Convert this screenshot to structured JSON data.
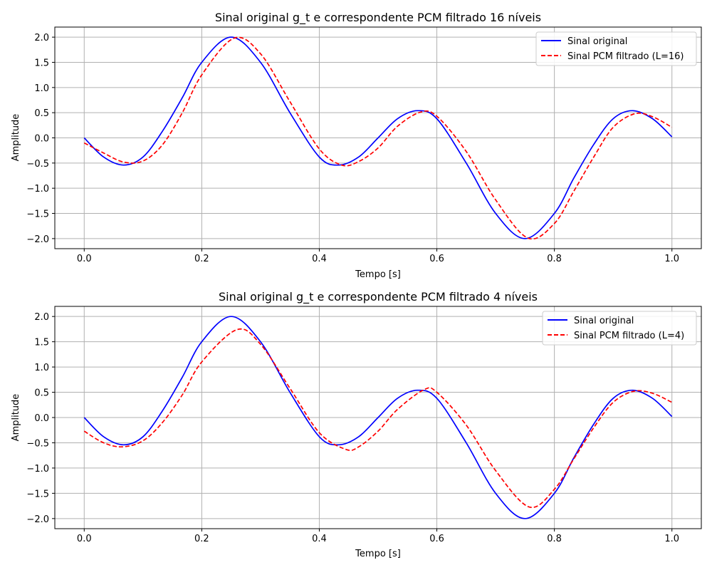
{
  "chart_data": [
    {
      "type": "line",
      "title": "Sinal original g_t e correspondente PCM filtrado 16 níveis",
      "xlabel": "Tempo [s]",
      "ylabel": "Amplitude",
      "xlim": [
        -0.05,
        1.05
      ],
      "ylim": [
        -2.2,
        2.2
      ],
      "xticks": [
        0.0,
        0.2,
        0.4,
        0.6,
        0.8,
        1.0
      ],
      "xtick_labels": [
        "0.0",
        "0.2",
        "0.4",
        "0.6",
        "0.8",
        "1.0"
      ],
      "yticks": [
        2.0,
        1.5,
        1.0,
        0.5,
        0.0,
        -0.5,
        -1.0,
        -1.5,
        -2.0
      ],
      "ytick_labels": [
        "2.0",
        "1.5",
        "1.0",
        "0.5",
        "0.0",
        "−0.5",
        "−1.0",
        "−1.5",
        "−2.0"
      ],
      "grid": true,
      "legend_position": "top-right",
      "series": [
        {
          "name": "Sinal original",
          "color": "#0000ff",
          "style": "solid",
          "x": [
            0.0,
            0.033,
            0.067,
            0.1,
            0.133,
            0.167,
            0.2,
            0.25,
            0.3,
            0.35,
            0.4,
            0.433,
            0.467,
            0.5,
            0.533,
            0.567,
            0.6,
            0.65,
            0.7,
            0.75,
            0.8,
            0.833,
            0.867,
            0.9,
            0.933,
            0.967,
            1.0
          ],
          "y": [
            0.0,
            -0.38,
            -0.54,
            -0.38,
            0.13,
            0.8,
            1.5,
            2.0,
            1.5,
            0.5,
            -0.38,
            -0.54,
            -0.38,
            0.0,
            0.38,
            0.54,
            0.38,
            -0.5,
            -1.5,
            -2.0,
            -1.5,
            -0.8,
            -0.13,
            0.38,
            0.54,
            0.38,
            0.02
          ]
        },
        {
          "name": "Sinal PCM filtrado (L=16)",
          "color": "#ff0000",
          "style": "dashed",
          "x": [
            0.0,
            0.033,
            0.067,
            0.1,
            0.133,
            0.167,
            0.2,
            0.255,
            0.3,
            0.35,
            0.4,
            0.438,
            0.467,
            0.5,
            0.533,
            0.572,
            0.6,
            0.65,
            0.7,
            0.755,
            0.8,
            0.833,
            0.867,
            0.9,
            0.937,
            0.967,
            1.0
          ],
          "y": [
            -0.1,
            -0.3,
            -0.48,
            -0.46,
            -0.14,
            0.5,
            1.25,
            1.98,
            1.67,
            0.72,
            -0.22,
            -0.54,
            -0.47,
            -0.2,
            0.23,
            0.51,
            0.43,
            -0.27,
            -1.23,
            -1.99,
            -1.7,
            -1.06,
            -0.38,
            0.21,
            0.48,
            0.42,
            0.21
          ]
        }
      ]
    },
    {
      "type": "line",
      "title": "Sinal original g_t e correspondente PCM filtrado 4 níveis",
      "xlabel": "Tempo [s]",
      "ylabel": "Amplitude",
      "xlim": [
        -0.05,
        1.05
      ],
      "ylim": [
        -2.2,
        2.2
      ],
      "xticks": [
        0.0,
        0.2,
        0.4,
        0.6,
        0.8,
        1.0
      ],
      "xtick_labels": [
        "0.0",
        "0.2",
        "0.4",
        "0.6",
        "0.8",
        "1.0"
      ],
      "yticks": [
        2.0,
        1.5,
        1.0,
        0.5,
        0.0,
        -0.5,
        -1.0,
        -1.5,
        -2.0
      ],
      "ytick_labels": [
        "2.0",
        "1.5",
        "1.0",
        "0.5",
        "0.0",
        "−0.5",
        "−1.0",
        "−1.5",
        "−2.0"
      ],
      "grid": true,
      "legend_position": "top-right",
      "series": [
        {
          "name": "Sinal original",
          "color": "#0000ff",
          "style": "solid",
          "x": [
            0.0,
            0.033,
            0.067,
            0.1,
            0.133,
            0.167,
            0.2,
            0.25,
            0.3,
            0.35,
            0.4,
            0.433,
            0.467,
            0.5,
            0.533,
            0.567,
            0.6,
            0.65,
            0.7,
            0.75,
            0.8,
            0.833,
            0.867,
            0.9,
            0.933,
            0.967,
            1.0
          ],
          "y": [
            0.0,
            -0.38,
            -0.54,
            -0.38,
            0.13,
            0.8,
            1.5,
            2.0,
            1.5,
            0.5,
            -0.38,
            -0.54,
            -0.38,
            0.0,
            0.38,
            0.54,
            0.38,
            -0.5,
            -1.5,
            -2.0,
            -1.5,
            -0.8,
            -0.13,
            0.38,
            0.54,
            0.38,
            0.02
          ]
        },
        {
          "name": "Sinal PCM filtrado (L=4)",
          "color": "#ff0000",
          "style": "dashed",
          "x": [
            0.0,
            0.033,
            0.065,
            0.1,
            0.133,
            0.167,
            0.2,
            0.26,
            0.3,
            0.35,
            0.4,
            0.445,
            0.467,
            0.5,
            0.533,
            0.578,
            0.6,
            0.65,
            0.7,
            0.757,
            0.8,
            0.833,
            0.867,
            0.9,
            0.935,
            0.967,
            1.0
          ],
          "y": [
            -0.27,
            -0.5,
            -0.58,
            -0.46,
            -0.1,
            0.45,
            1.1,
            1.74,
            1.45,
            0.58,
            -0.3,
            -0.63,
            -0.58,
            -0.27,
            0.16,
            0.55,
            0.5,
            -0.15,
            -1.05,
            -1.77,
            -1.42,
            -0.82,
            -0.2,
            0.3,
            0.52,
            0.48,
            0.3
          ]
        }
      ]
    }
  ]
}
